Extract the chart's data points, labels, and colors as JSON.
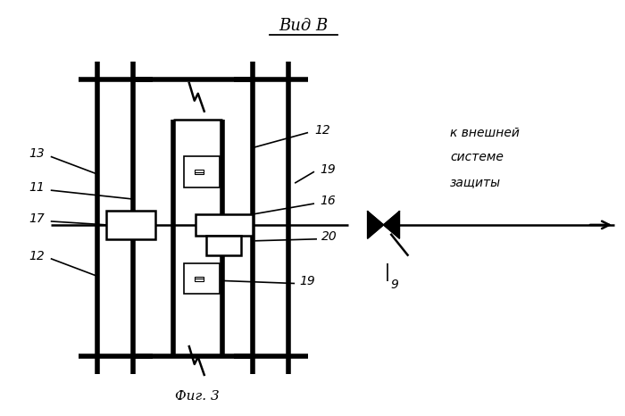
{
  "title": "Вид В",
  "fig_caption": "Фиг. 3",
  "side_text": [
    "к внешней",
    "системе",
    "защиты"
  ],
  "bg_color": "#ffffff",
  "line_color": "#000000",
  "lw_thick": 4.0,
  "lw_medium": 1.8,
  "lw_thin": 1.2
}
